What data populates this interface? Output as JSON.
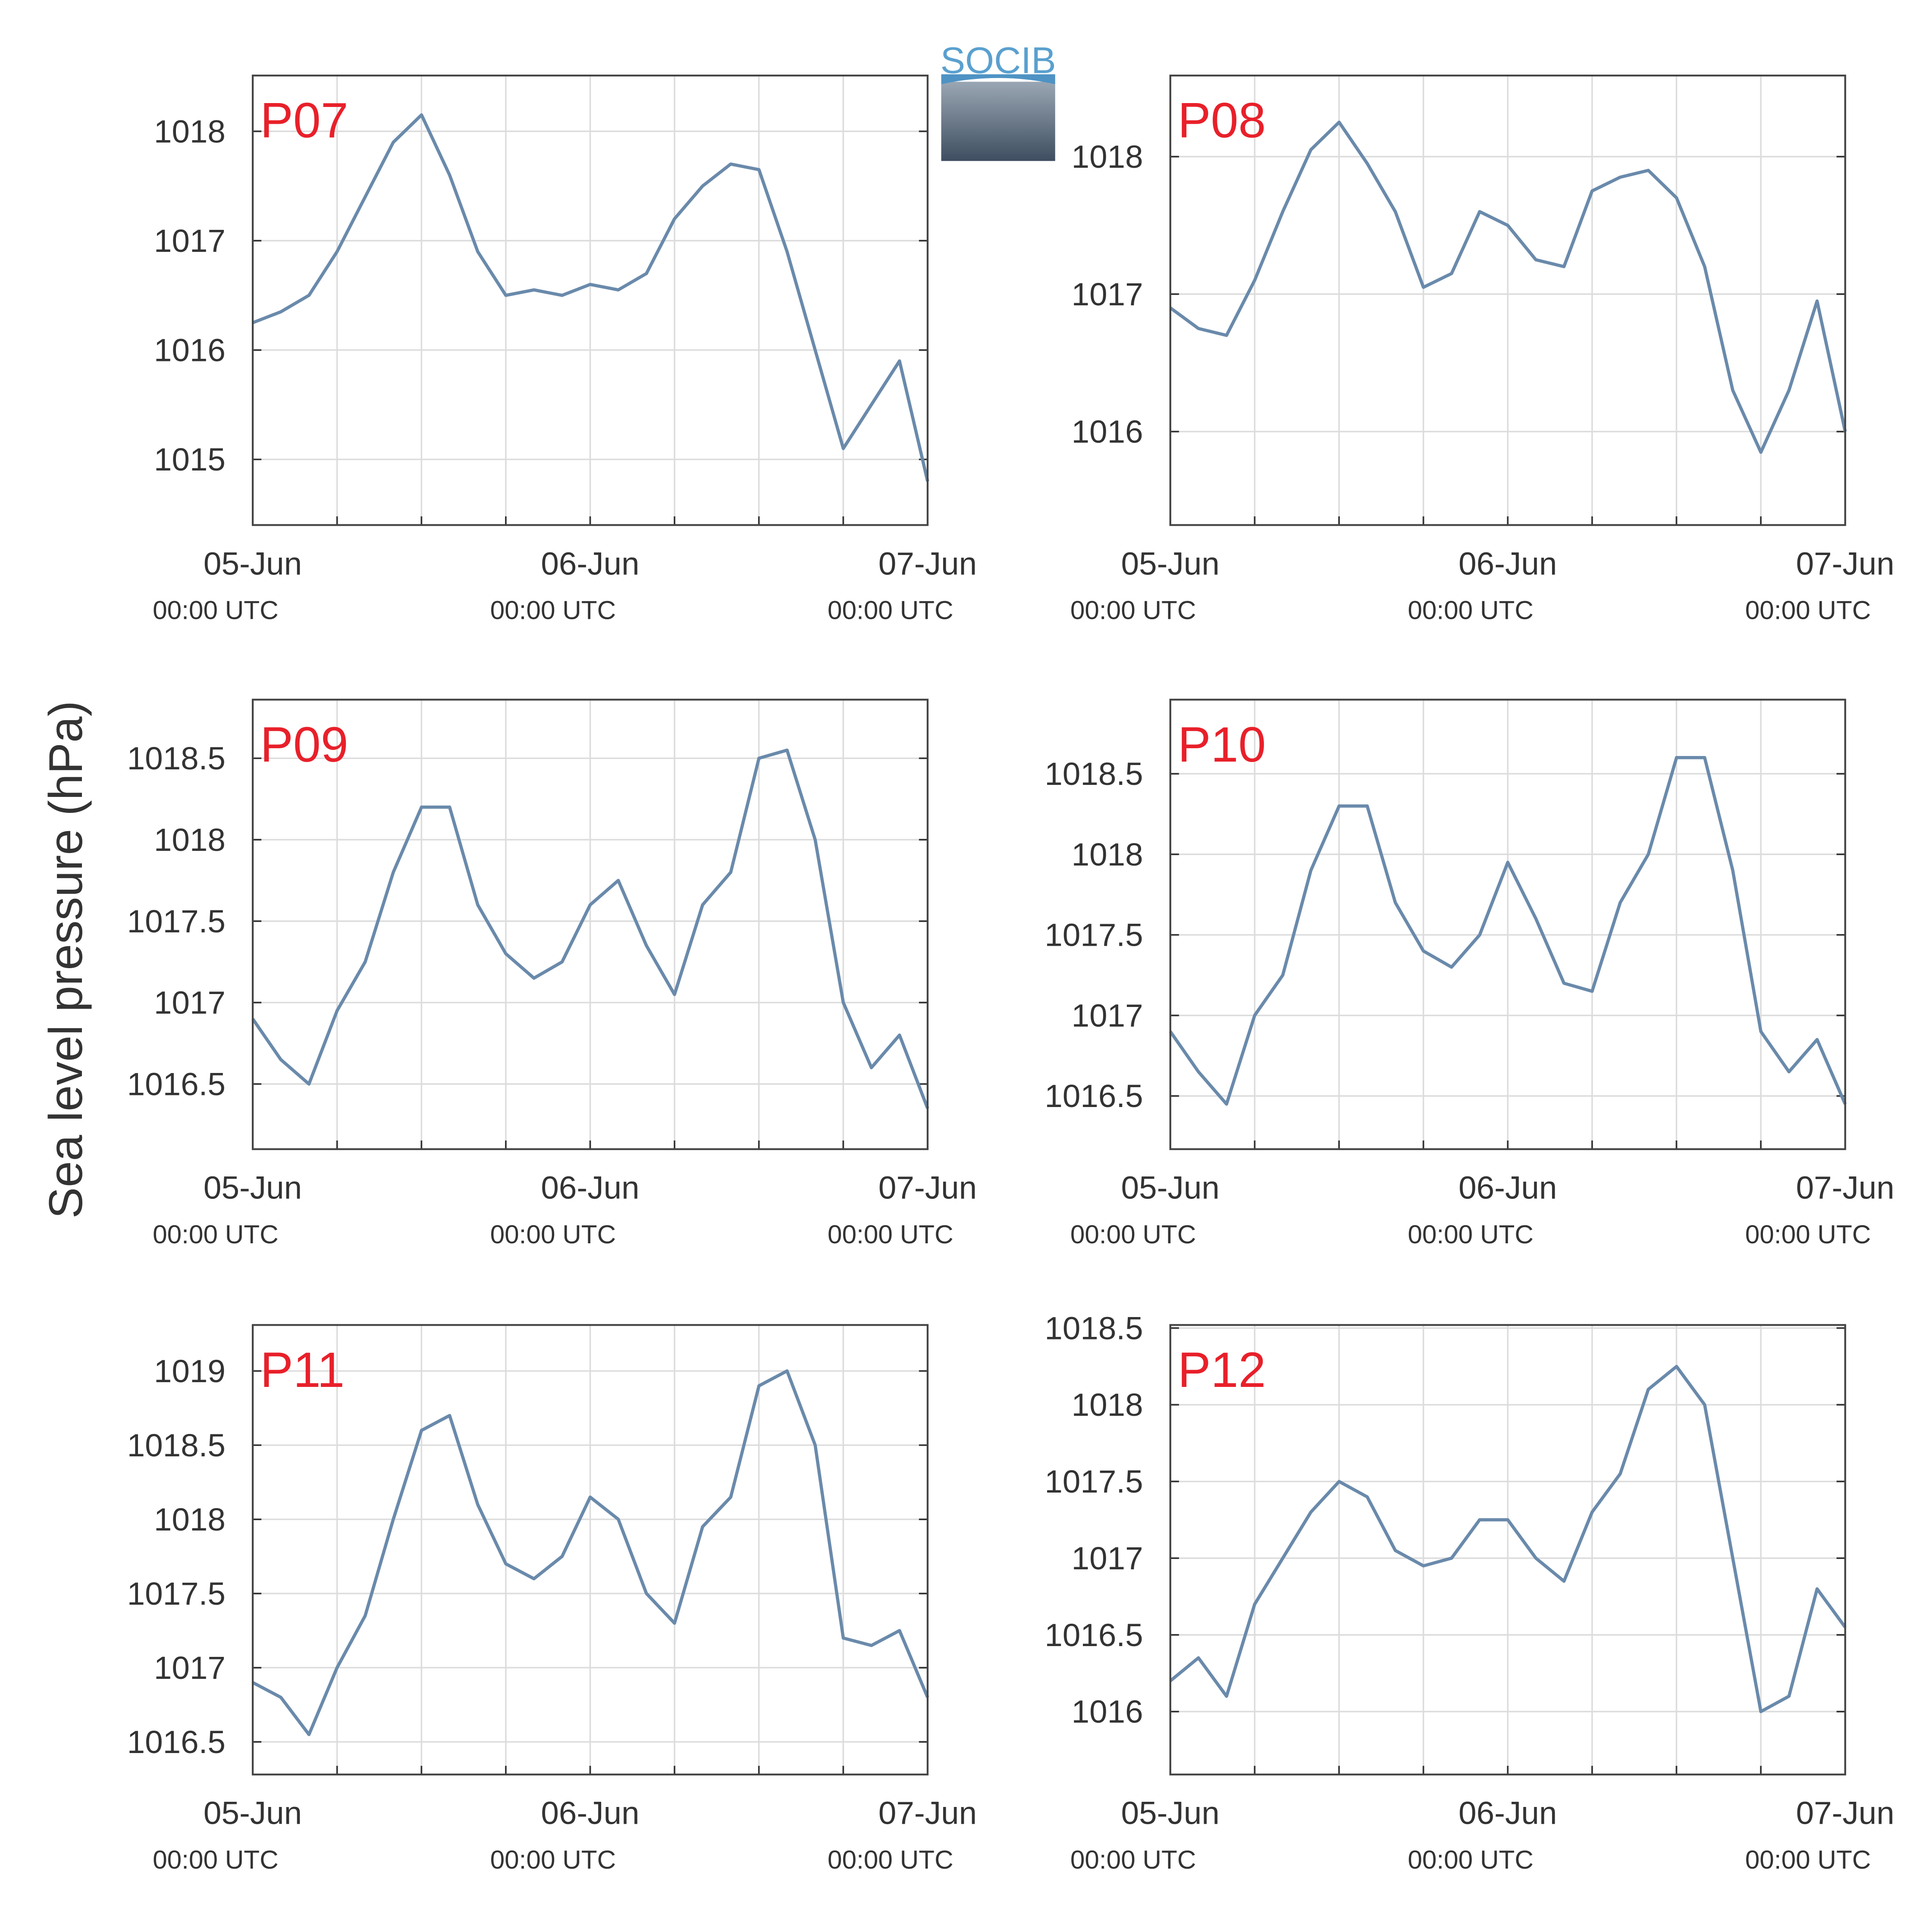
{
  "ylabel": "Sea level pressure (hPa)",
  "logo": "SOCIB",
  "chart_data": [
    {
      "type": "line",
      "title": "P07",
      "color": "#6a8aab",
      "grid": true,
      "x": [
        "05-Jun 00:00",
        "05-Jun 02:00",
        "05-Jun 04:00",
        "05-Jun 06:00",
        "05-Jun 08:00",
        "05-Jun 10:00",
        "05-Jun 12:00",
        "05-Jun 14:00",
        "05-Jun 16:00",
        "05-Jun 18:00",
        "05-Jun 20:00",
        "05-Jun 22:00",
        "06-Jun 00:00",
        "06-Jun 02:00",
        "06-Jun 04:00",
        "06-Jun 06:00",
        "06-Jun 08:00",
        "06-Jun 10:00",
        "06-Jun 12:00",
        "06-Jun 14:00",
        "06-Jun 16:00",
        "06-Jun 18:00",
        "06-Jun 20:00",
        "06-Jun 22:00",
        "07-Jun 00:00"
      ],
      "values": [
        1016.25,
        1016.35,
        1016.5,
        1016.9,
        1017.4,
        1017.9,
        1018.15,
        1017.6,
        1016.9,
        1016.5,
        1016.55,
        1016.5,
        1016.6,
        1016.55,
        1016.7,
        1017.2,
        1017.5,
        1017.7,
        1017.65,
        1016.9,
        1016.0,
        1015.1,
        1015.5,
        1015.9,
        1014.8
      ],
      "xlim": [
        "05-Jun 00:00",
        "07-Jun 00:00"
      ],
      "xticks": [
        {
          "value": "05-Jun 00:00",
          "label": [
            "05-Jun",
            "00:00 UTC"
          ]
        },
        {
          "value": "05-Jun 06:00",
          "label": null
        },
        {
          "value": "05-Jun 12:00",
          "label": null
        },
        {
          "value": "05-Jun 18:00",
          "label": null
        },
        {
          "value": "06-Jun 00:00",
          "label": [
            "06-Jun",
            "00:00 UTC"
          ]
        },
        {
          "value": "06-Jun 06:00",
          "label": null
        },
        {
          "value": "06-Jun 12:00",
          "label": null
        },
        {
          "value": "06-Jun 18:00",
          "label": null
        },
        {
          "value": "07-Jun 00:00",
          "label": [
            "07-Jun",
            "00:00 UTC"
          ]
        }
      ],
      "ylim": [
        1014.4,
        1018.51
      ],
      "yticks": [
        1015,
        1016,
        1017,
        1018
      ]
    },
    {
      "type": "line",
      "title": "P08",
      "color": "#6a8aab",
      "grid": true,
      "x": [
        "05-Jun 00:00",
        "05-Jun 02:00",
        "05-Jun 04:00",
        "05-Jun 06:00",
        "05-Jun 08:00",
        "05-Jun 10:00",
        "05-Jun 12:00",
        "05-Jun 14:00",
        "05-Jun 16:00",
        "05-Jun 18:00",
        "05-Jun 20:00",
        "05-Jun 22:00",
        "06-Jun 00:00",
        "06-Jun 02:00",
        "06-Jun 04:00",
        "06-Jun 06:00",
        "06-Jun 08:00",
        "06-Jun 10:00",
        "06-Jun 12:00",
        "06-Jun 14:00",
        "06-Jun 16:00",
        "06-Jun 18:00",
        "06-Jun 20:00",
        "06-Jun 22:00",
        "07-Jun 00:00"
      ],
      "values": [
        1016.9,
        1016.75,
        1016.7,
        1017.1,
        1017.6,
        1018.05,
        1018.25,
        1017.95,
        1017.6,
        1017.05,
        1017.15,
        1017.6,
        1017.5,
        1017.25,
        1017.2,
        1017.75,
        1017.85,
        1017.9,
        1017.7,
        1017.2,
        1016.3,
        1015.85,
        1016.3,
        1016.95,
        1016.0
      ],
      "xlim": [
        "05-Jun 00:00",
        "07-Jun 00:00"
      ],
      "xticks": [
        {
          "value": "05-Jun 00:00",
          "label": [
            "05-Jun",
            "00:00 UTC"
          ]
        },
        {
          "value": "05-Jun 06:00",
          "label": null
        },
        {
          "value": "05-Jun 12:00",
          "label": null
        },
        {
          "value": "05-Jun 18:00",
          "label": null
        },
        {
          "value": "06-Jun 00:00",
          "label": [
            "06-Jun",
            "00:00 UTC"
          ]
        },
        {
          "value": "06-Jun 06:00",
          "label": null
        },
        {
          "value": "06-Jun 12:00",
          "label": null
        },
        {
          "value": "06-Jun 18:00",
          "label": null
        },
        {
          "value": "07-Jun 00:00",
          "label": [
            "07-Jun",
            "00:00 UTC"
          ]
        }
      ],
      "ylim": [
        1015.32,
        1018.59
      ],
      "yticks": [
        1016,
        1017,
        1018
      ]
    },
    {
      "type": "line",
      "title": "P09",
      "color": "#6a8aab",
      "grid": true,
      "x": [
        "05-Jun 00:00",
        "05-Jun 02:00",
        "05-Jun 04:00",
        "05-Jun 06:00",
        "05-Jun 08:00",
        "05-Jun 10:00",
        "05-Jun 12:00",
        "05-Jun 14:00",
        "05-Jun 16:00",
        "05-Jun 18:00",
        "05-Jun 20:00",
        "05-Jun 22:00",
        "06-Jun 00:00",
        "06-Jun 02:00",
        "06-Jun 04:00",
        "06-Jun 06:00",
        "06-Jun 08:00",
        "06-Jun 10:00",
        "06-Jun 12:00",
        "06-Jun 14:00",
        "06-Jun 16:00",
        "06-Jun 18:00",
        "06-Jun 20:00",
        "06-Jun 22:00",
        "07-Jun 00:00"
      ],
      "values": [
        1016.9,
        1016.65,
        1016.5,
        1016.95,
        1017.25,
        1017.8,
        1018.2,
        1018.2,
        1017.6,
        1017.3,
        1017.15,
        1017.25,
        1017.6,
        1017.75,
        1017.35,
        1017.05,
        1017.6,
        1017.8,
        1018.5,
        1018.55,
        1018.0,
        1017.0,
        1016.6,
        1016.8,
        1016.35
      ],
      "xlim": [
        "05-Jun 00:00",
        "07-Jun 00:00"
      ],
      "xticks": [
        {
          "value": "05-Jun 00:00",
          "label": [
            "05-Jun",
            "00:00 UTC"
          ]
        },
        {
          "value": "05-Jun 06:00",
          "label": null
        },
        {
          "value": "05-Jun 12:00",
          "label": null
        },
        {
          "value": "05-Jun 18:00",
          "label": null
        },
        {
          "value": "06-Jun 00:00",
          "label": [
            "06-Jun",
            "00:00 UTC"
          ]
        },
        {
          "value": "06-Jun 06:00",
          "label": null
        },
        {
          "value": "06-Jun 12:00",
          "label": null
        },
        {
          "value": "06-Jun 18:00",
          "label": null
        },
        {
          "value": "07-Jun 00:00",
          "label": [
            "07-Jun",
            "00:00 UTC"
          ]
        }
      ],
      "ylim": [
        1016.1,
        1018.86
      ],
      "yticks": [
        1016.5,
        1017,
        1017.5,
        1018,
        1018.5
      ]
    },
    {
      "type": "line",
      "title": "P10",
      "color": "#6a8aab",
      "grid": true,
      "x": [
        "05-Jun 00:00",
        "05-Jun 02:00",
        "05-Jun 04:00",
        "05-Jun 06:00",
        "05-Jun 08:00",
        "05-Jun 10:00",
        "05-Jun 12:00",
        "05-Jun 14:00",
        "05-Jun 16:00",
        "05-Jun 18:00",
        "05-Jun 20:00",
        "05-Jun 22:00",
        "06-Jun 00:00",
        "06-Jun 02:00",
        "06-Jun 04:00",
        "06-Jun 06:00",
        "06-Jun 08:00",
        "06-Jun 10:00",
        "06-Jun 12:00",
        "06-Jun 14:00",
        "06-Jun 16:00",
        "06-Jun 18:00",
        "06-Jun 20:00",
        "06-Jun 22:00",
        "07-Jun 00:00"
      ],
      "values": [
        1016.9,
        1016.65,
        1016.45,
        1017.0,
        1017.25,
        1017.9,
        1018.3,
        1018.3,
        1017.7,
        1017.4,
        1017.3,
        1017.5,
        1017.95,
        1017.6,
        1017.2,
        1017.15,
        1017.7,
        1018.0,
        1018.6,
        1018.6,
        1017.9,
        1016.9,
        1016.65,
        1016.85,
        1016.45
      ],
      "xlim": [
        "05-Jun 00:00",
        "07-Jun 00:00"
      ],
      "xticks": [
        {
          "value": "05-Jun 00:00",
          "label": [
            "05-Jun",
            "00:00 UTC"
          ]
        },
        {
          "value": "05-Jun 06:00",
          "label": null
        },
        {
          "value": "05-Jun 12:00",
          "label": null
        },
        {
          "value": "05-Jun 18:00",
          "label": null
        },
        {
          "value": "06-Jun 00:00",
          "label": [
            "06-Jun",
            "00:00 UTC"
          ]
        },
        {
          "value": "06-Jun 06:00",
          "label": null
        },
        {
          "value": "06-Jun 12:00",
          "label": null
        },
        {
          "value": "06-Jun 18:00",
          "label": null
        },
        {
          "value": "07-Jun 00:00",
          "label": [
            "07-Jun",
            "00:00 UTC"
          ]
        }
      ],
      "ylim": [
        1016.17,
        1018.96
      ],
      "yticks": [
        1016.5,
        1017,
        1017.5,
        1018,
        1018.5
      ]
    },
    {
      "type": "line",
      "title": "P11",
      "color": "#6a8aab",
      "grid": true,
      "x": [
        "05-Jun 00:00",
        "05-Jun 02:00",
        "05-Jun 04:00",
        "05-Jun 06:00",
        "05-Jun 08:00",
        "05-Jun 10:00",
        "05-Jun 12:00",
        "05-Jun 14:00",
        "05-Jun 16:00",
        "05-Jun 18:00",
        "05-Jun 20:00",
        "05-Jun 22:00",
        "06-Jun 00:00",
        "06-Jun 02:00",
        "06-Jun 04:00",
        "06-Jun 06:00",
        "06-Jun 08:00",
        "06-Jun 10:00",
        "06-Jun 12:00",
        "06-Jun 14:00",
        "06-Jun 16:00",
        "06-Jun 18:00",
        "06-Jun 20:00",
        "06-Jun 22:00",
        "07-Jun 00:00"
      ],
      "values": [
        1016.9,
        1016.8,
        1016.55,
        1017.0,
        1017.35,
        1018.0,
        1018.6,
        1018.7,
        1018.1,
        1017.7,
        1017.6,
        1017.75,
        1018.15,
        1018.0,
        1017.5,
        1017.3,
        1017.95,
        1018.15,
        1018.9,
        1019.0,
        1018.5,
        1017.2,
        1017.15,
        1017.25,
        1016.8
      ],
      "xlim": [
        "05-Jun 00:00",
        "07-Jun 00:00"
      ],
      "xticks": [
        {
          "value": "05-Jun 00:00",
          "label": [
            "05-Jun",
            "00:00 UTC"
          ]
        },
        {
          "value": "05-Jun 06:00",
          "label": null
        },
        {
          "value": "05-Jun 12:00",
          "label": null
        },
        {
          "value": "05-Jun 18:00",
          "label": null
        },
        {
          "value": "06-Jun 00:00",
          "label": [
            "06-Jun",
            "00:00 UTC"
          ]
        },
        {
          "value": "06-Jun 06:00",
          "label": null
        },
        {
          "value": "06-Jun 12:00",
          "label": null
        },
        {
          "value": "06-Jun 18:00",
          "label": null
        },
        {
          "value": "07-Jun 00:00",
          "label": [
            "07-Jun",
            "00:00 UTC"
          ]
        }
      ],
      "ylim": [
        1016.28,
        1019.31
      ],
      "yticks": [
        1016.5,
        1017,
        1017.5,
        1018,
        1018.5,
        1019
      ]
    },
    {
      "type": "line",
      "title": "P12",
      "color": "#6a8aab",
      "grid": true,
      "x": [
        "05-Jun 00:00",
        "05-Jun 02:00",
        "05-Jun 04:00",
        "05-Jun 06:00",
        "05-Jun 08:00",
        "05-Jun 10:00",
        "05-Jun 12:00",
        "05-Jun 14:00",
        "05-Jun 16:00",
        "05-Jun 18:00",
        "05-Jun 20:00",
        "05-Jun 22:00",
        "06-Jun 00:00",
        "06-Jun 02:00",
        "06-Jun 04:00",
        "06-Jun 06:00",
        "06-Jun 08:00",
        "06-Jun 10:00",
        "06-Jun 12:00",
        "06-Jun 14:00",
        "06-Jun 16:00",
        "06-Jun 18:00",
        "06-Jun 20:00",
        "06-Jun 22:00",
        "07-Jun 00:00"
      ],
      "values": [
        1016.2,
        1016.35,
        1016.1,
        1016.7,
        1017.0,
        1017.3,
        1017.5,
        1017.4,
        1017.05,
        1016.95,
        1017.0,
        1017.25,
        1017.25,
        1017.0,
        1016.85,
        1017.3,
        1017.55,
        1018.1,
        1018.25,
        1018.0,
        1017.0,
        1016.0,
        1016.1,
        1016.8,
        1016.55
      ],
      "xlim": [
        "05-Jun 00:00",
        "07-Jun 00:00"
      ],
      "xticks": [
        {
          "value": "05-Jun 00:00",
          "label": [
            "05-Jun",
            "00:00 UTC"
          ]
        },
        {
          "value": "05-Jun 06:00",
          "label": null
        },
        {
          "value": "05-Jun 12:00",
          "label": null
        },
        {
          "value": "05-Jun 18:00",
          "label": null
        },
        {
          "value": "06-Jun 00:00",
          "label": [
            "06-Jun",
            "00:00 UTC"
          ]
        },
        {
          "value": "06-Jun 06:00",
          "label": null
        },
        {
          "value": "06-Jun 12:00",
          "label": null
        },
        {
          "value": "06-Jun 18:00",
          "label": null
        },
        {
          "value": "07-Jun 00:00",
          "label": [
            "07-Jun",
            "00:00 UTC"
          ]
        }
      ],
      "ylim": [
        1015.59,
        1018.52
      ],
      "yticks": [
        1016,
        1016.5,
        1017,
        1017.5,
        1018,
        1018.5
      ]
    }
  ]
}
